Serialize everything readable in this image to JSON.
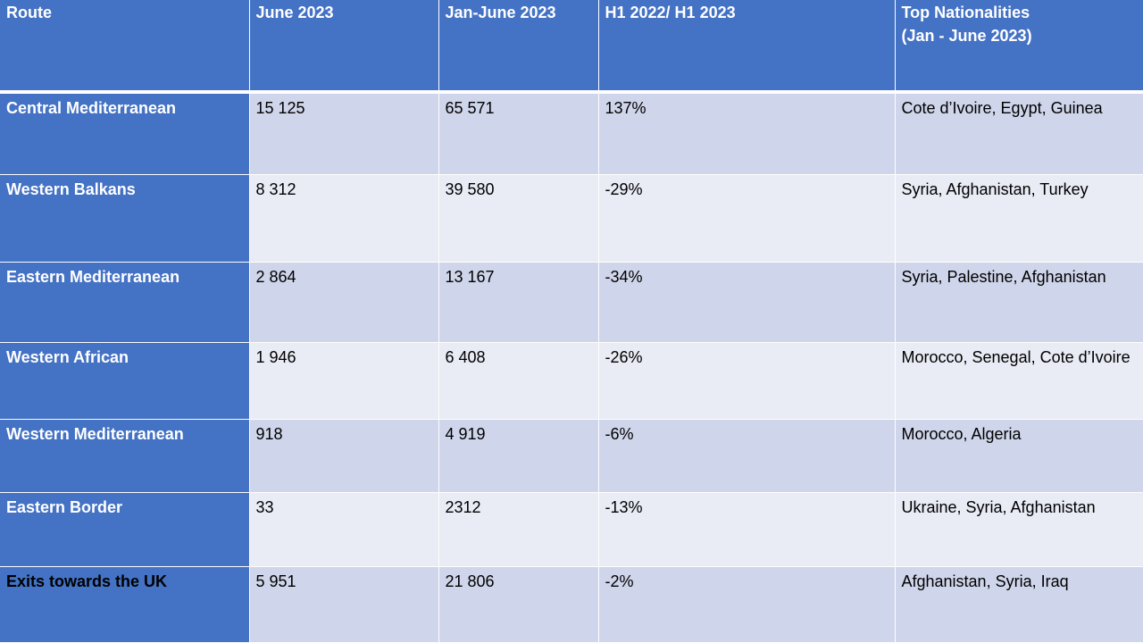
{
  "table": {
    "headers": [
      "Route",
      "June 2023",
      "Jan-June 2023",
      "H1 2022/ H1 2023",
      "Top Nationalities",
      "(Jan - June 2023)"
    ],
    "rows": [
      {
        "route": "Central Mediterranean",
        "june": "15 125",
        "janjune": "65 571",
        "change": "137%",
        "nationalities": "Cote d’Ivoire, Egypt, Guinea"
      },
      {
        "route": "Western Balkans",
        "june": "8 312",
        "janjune": "39 580",
        "change": "-29%",
        "nationalities": "Syria, Afghanistan, Turkey"
      },
      {
        "route": "Eastern Mediterranean",
        "june": "2 864",
        "janjune": "13 167",
        "change": "-34%",
        "nationalities": "Syria, Palestine, Afghanistan"
      },
      {
        "route": "Western African",
        "june": "1 946",
        "janjune": "6 408",
        "change": "-26%",
        "nationalities": "Morocco, Senegal, Cote d’Ivoire"
      },
      {
        "route": "Western Mediterranean",
        "june": "918",
        "janjune": "4 919",
        "change": "-6%",
        "nationalities": "Morocco, Algeria"
      },
      {
        "route": "Eastern Border",
        "june": "33",
        "janjune": "2312",
        "change": "-13%",
        "nationalities": "Ukraine, Syria, Afghanistan"
      },
      {
        "route": "Exits towards the UK",
        "june": "5 951",
        "janjune": "21 806",
        "change": "-2%",
        "nationalities": "Afghanistan, Syria, Iraq"
      }
    ]
  },
  "colors": {
    "header_bg": "#4472c4",
    "band_dark": "#cfd5ea",
    "band_light": "#e9ebf5"
  }
}
